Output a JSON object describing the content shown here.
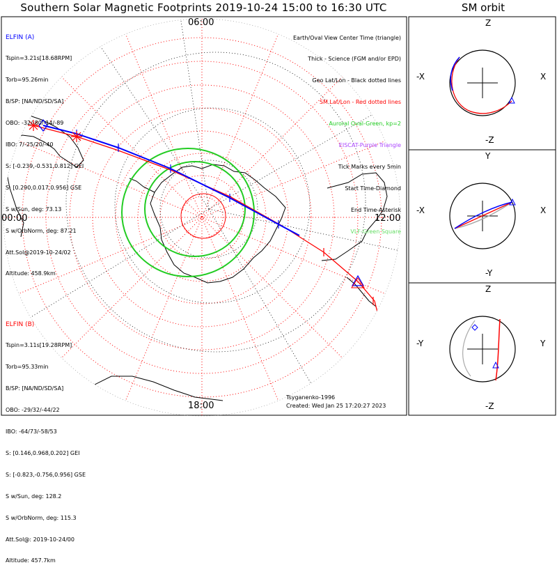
{
  "title": "Southern Solar Magnetic Footprints 2019-10-24 15:00 to 16:30 UTC",
  "orbit_title": "SM orbit",
  "hour_labels": {
    "top": "06:00",
    "left": "00:00",
    "right": "12:00",
    "bottom": "18:00"
  },
  "elfin_a": {
    "name": "ELFIN (A)",
    "color": "#0000ff",
    "lines": [
      "Tspin=3.21s[18.68RPM]",
      "Torb=95.26min",
      "B/SP: [NA/ND/SD/SA]",
      "OBO: -32/-80/-14/-89",
      "IBO: 7/-25/20/-40",
      "S: [-0.239,-0.531,0.812] GEI",
      "S: [0.290,0.017,0.956] GSE",
      "S w/Sun, deg: 73.13",
      "S w/OrbNorm, deg: 87.21",
      "Att.Sol@2019-10-24/02",
      "Altitude: 458.9km"
    ]
  },
  "elfin_b": {
    "name": "ELFIN (B)",
    "color": "#ff0000",
    "lines": [
      "Tspin=3.11s[19.28RPM]",
      "Torb=95.33min",
      "B/SP: [NA/ND/SD/SA]",
      "OBO: -29/32/-44/22",
      "IBO: -64/73/-58/53",
      "S: [0.146,0.968,0.202] GEI",
      "S: [-0.823,-0.756,0.956] GSE",
      "S w/Sun, deg: 128.2",
      "S w/OrbNorm, deg: 115.3",
      "Att.Sol@: 2019-10-24/00",
      "Altitude: 457.7km"
    ]
  },
  "legend": [
    {
      "text": "Earth/Oval View Center Time (triangle)",
      "color": "#000000"
    },
    {
      "text": "Thick - Science (FGM and/or EPD)",
      "color": "#000000"
    },
    {
      "text": "Geo Lat/Lon - Black dotted lines",
      "color": "#000000"
    },
    {
      "text": "SM Lat/Lon - Red dotted lines",
      "color": "#ff0000"
    },
    {
      "text": "Auroral Oval-Green, kp=2",
      "color": "#22cc22"
    },
    {
      "text": "EISCAT-Purple Triangle",
      "color": "#aa44ff"
    },
    {
      "text": "Tick Marks every 5min",
      "color": "#000000"
    },
    {
      "text": "Start Time-Diamond",
      "color": "#000000"
    },
    {
      "text": "End Time-Asterisk",
      "color": "#000000"
    },
    {
      "text": "VLF-Green Square",
      "color": "#66dd66"
    }
  ],
  "footer": {
    "model": "Tsyganenko-1996",
    "created": "Created: Wed Jan 25 17:20:27 2023"
  },
  "orbit_panels": [
    {
      "top": "Z",
      "bottom": "-Z",
      "left": "-X",
      "right": "X"
    },
    {
      "top": "Y",
      "bottom": "-Y",
      "left": "-X",
      "right": "X"
    },
    {
      "top": "Z",
      "bottom": "-Z",
      "left": "-Y",
      "right": "Y"
    }
  ],
  "colors": {
    "elfin_a": "#0000ff",
    "elfin_b": "#ff0000",
    "auroral_oval": "#22cc22",
    "grid": "#ff0000"
  }
}
